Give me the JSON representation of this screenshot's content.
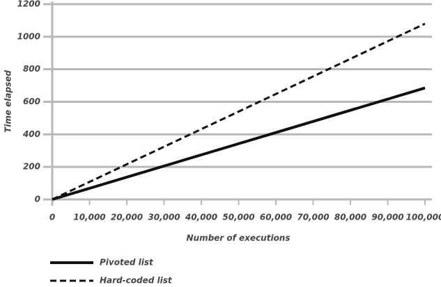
{
  "chart_data": {
    "type": "line",
    "x": [
      0,
      100000
    ],
    "series": [
      {
        "name": "Pivoted list",
        "color": "#111111",
        "dash": false,
        "values": [
          0,
          685
        ]
      },
      {
        "name": "Hard-coded list",
        "color": "#111111",
        "dash": true,
        "values": [
          0,
          1080
        ]
      }
    ],
    "xlabel": "Number of executions",
    "ylabel": "Time elapsed",
    "xlim": [
      0,
      100000
    ],
    "xticks": [
      0,
      {
        "value": 10000,
        "label": "10,000"
      },
      {
        "value": 20000,
        "label": "20,000"
      },
      {
        "value": 30000,
        "label": "30,000"
      },
      {
        "value": 40000,
        "label": "40,000"
      },
      {
        "value": 50000,
        "label": "50,000"
      },
      {
        "value": 60000,
        "label": "60,000"
      },
      {
        "value": 70000,
        "label": "70,000"
      },
      {
        "value": 80000,
        "label": "80,000"
      },
      {
        "value": 90000,
        "label": "90,000"
      },
      {
        "value": 100000,
        "label": "100,000"
      }
    ],
    "ylim": [
      0,
      1200
    ],
    "yticks": [
      0,
      200,
      400,
      600,
      800,
      1000,
      1200
    ],
    "grid": true,
    "legend": "bottom-left"
  }
}
